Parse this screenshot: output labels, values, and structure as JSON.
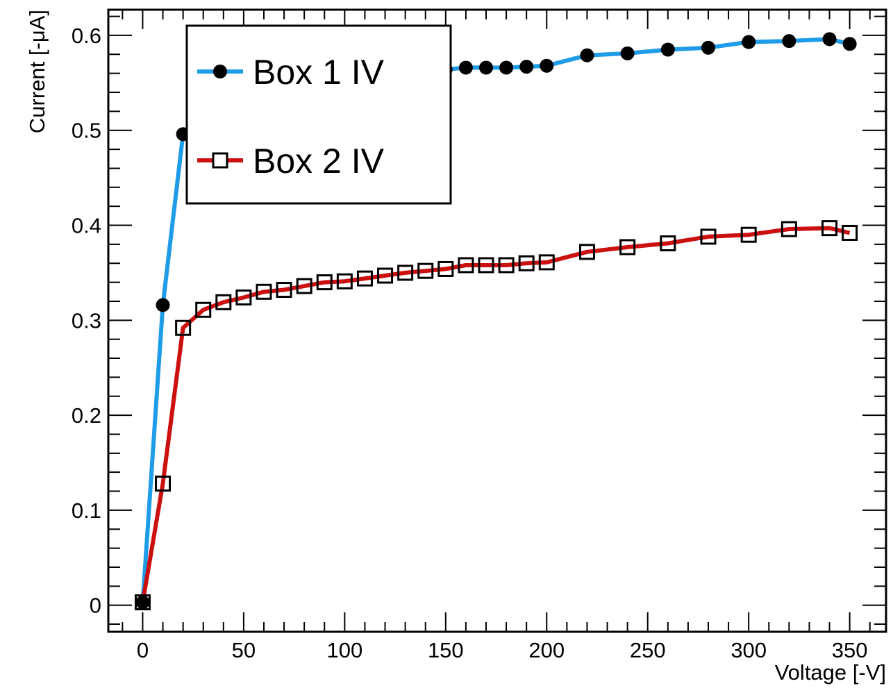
{
  "chart_data": {
    "type": "line",
    "title": "",
    "xlabel": "Voltage [-V]",
    "ylabel": "Current [-μA]",
    "xlim": [
      -17,
      368
    ],
    "ylim": [
      -0.028,
      0.627
    ],
    "x_ticks": [
      0,
      50,
      100,
      150,
      200,
      250,
      300,
      350
    ],
    "y_ticks": [
      0,
      0.1,
      0.2,
      0.3,
      0.4,
      0.5,
      0.6
    ],
    "x_tick_labels": [
      "0",
      "50",
      "100",
      "150",
      "200",
      "250",
      "300",
      "350"
    ],
    "y_tick_labels": [
      "0",
      "0.1",
      "0.2",
      "0.3",
      "0.4",
      "0.5",
      "0.6"
    ],
    "grid": false,
    "legend_position": "top-left",
    "series": [
      {
        "name": "Box 1 IV",
        "color": "#1e9ce8",
        "marker": "filled-circle",
        "x": [
          0,
          10,
          20,
          30,
          40,
          50,
          60,
          70,
          80,
          90,
          100,
          110,
          120,
          130,
          140,
          150,
          160,
          170,
          180,
          190,
          200,
          220,
          240,
          260,
          280,
          300,
          320,
          340,
          350
        ],
        "y": [
          0.003,
          0.316,
          0.496,
          0.52,
          0.53,
          0.537,
          0.542,
          0.546,
          0.549,
          0.552,
          0.554,
          0.556,
          0.558,
          0.56,
          0.562,
          0.564,
          0.566,
          0.566,
          0.566,
          0.567,
          0.568,
          0.579,
          0.581,
          0.585,
          0.587,
          0.593,
          0.594,
          0.596,
          0.591
        ]
      },
      {
        "name": "Box 2 IV",
        "color": "#cc1010",
        "marker": "open-square",
        "x": [
          0,
          10,
          20,
          30,
          40,
          50,
          60,
          70,
          80,
          90,
          100,
          110,
          120,
          130,
          140,
          150,
          160,
          170,
          180,
          190,
          200,
          220,
          240,
          260,
          280,
          300,
          320,
          340,
          350
        ],
        "y": [
          0.003,
          0.128,
          0.292,
          0.311,
          0.319,
          0.324,
          0.33,
          0.332,
          0.336,
          0.34,
          0.341,
          0.344,
          0.347,
          0.35,
          0.352,
          0.354,
          0.358,
          0.358,
          0.358,
          0.36,
          0.361,
          0.372,
          0.377,
          0.381,
          0.388,
          0.39,
          0.396,
          0.397,
          0.392
        ]
      }
    ]
  }
}
